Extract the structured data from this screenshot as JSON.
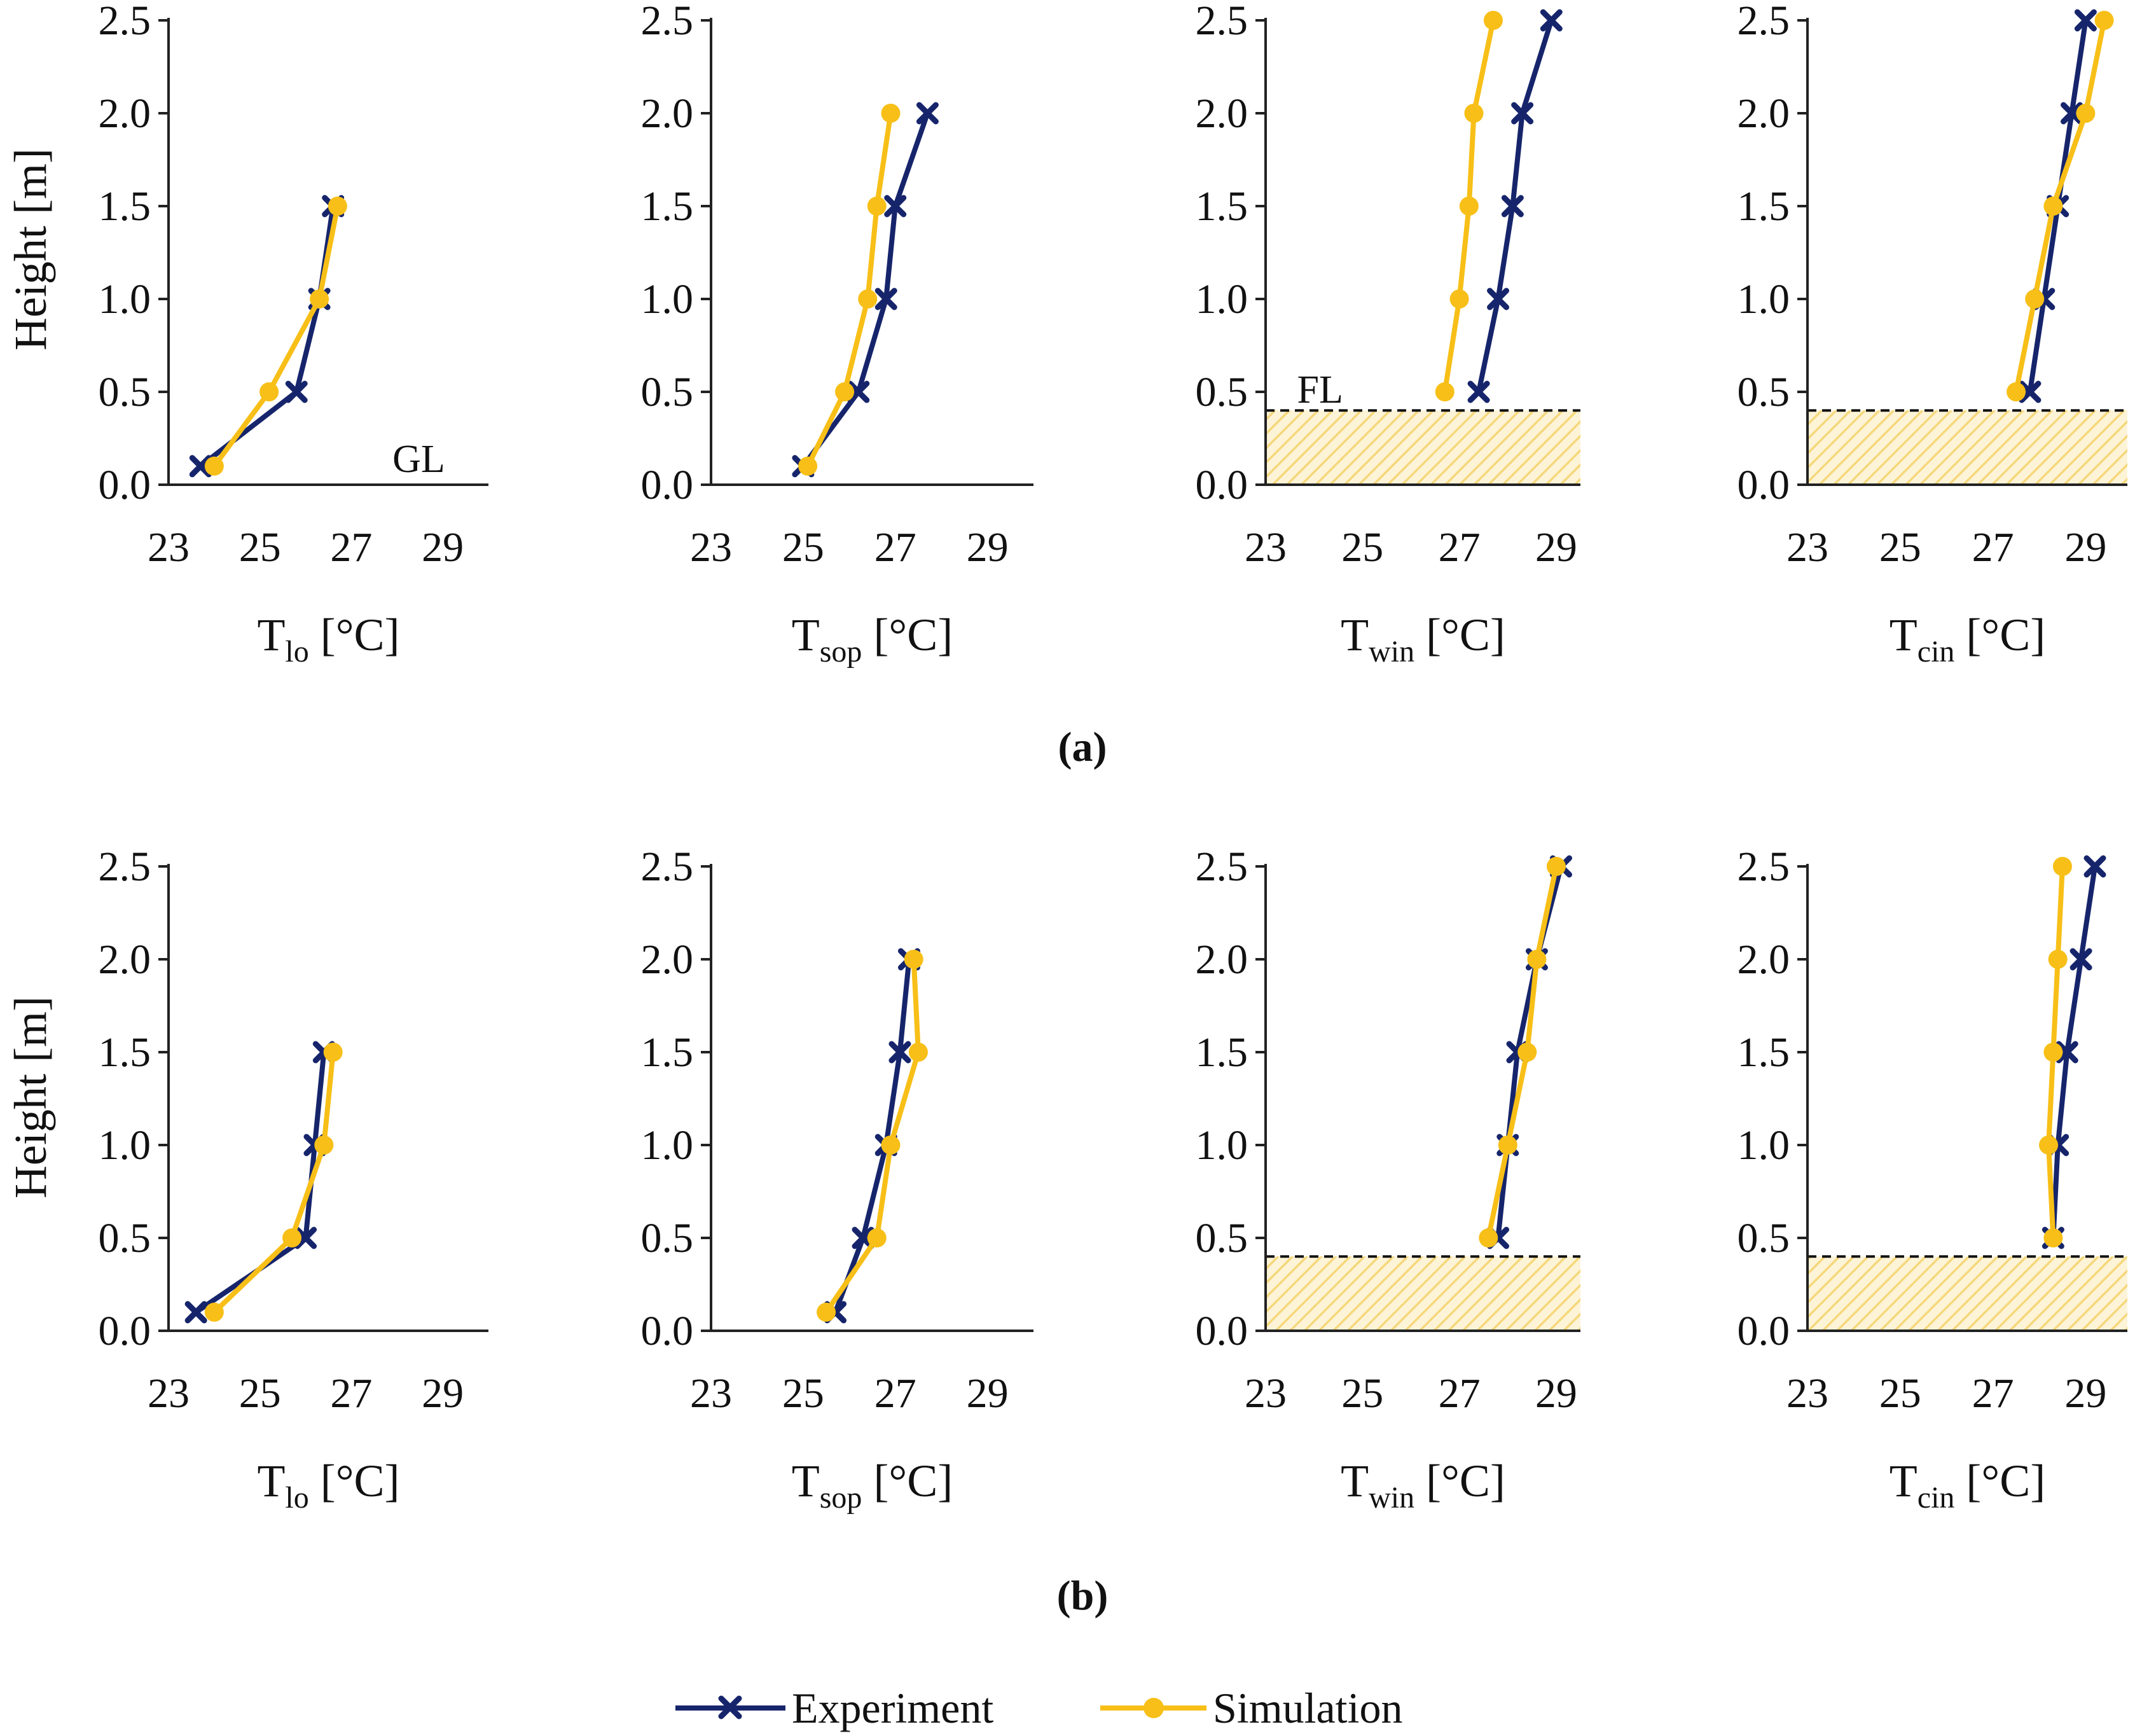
{
  "colors": {
    "experiment": "#16256b",
    "simulation": "#f7bf17",
    "hatch": "#f6d77a",
    "axis": "#222222"
  },
  "figure": {
    "row_a_label": "(a)",
    "row_b_label": "(b)",
    "ylabel": "Height [m]",
    "xlabel_unit": "[°C]",
    "legend": {
      "experiment": "Experiment",
      "simulation": "Simulation"
    }
  },
  "chart_data": [
    {
      "type": "line",
      "row": "a",
      "panel": 1,
      "xlabel_main": "T",
      "xlabel_sub": "lo",
      "xlim": [
        23,
        30
      ],
      "ylim": [
        0,
        2.5
      ],
      "xticks": [
        "23",
        "25",
        "27",
        "29"
      ],
      "yticks": [
        "0.0",
        "0.5",
        "1.0",
        "1.5",
        "2.0",
        "2.5"
      ],
      "show_ylabel": true,
      "annotation": "GL",
      "annotation_pos": "bottom-right",
      "floor_level": null,
      "series": [
        {
          "name": "Experiment",
          "points": [
            [
              23.7,
              0.1
            ],
            [
              25.8,
              0.5
            ],
            [
              26.3,
              1.0
            ],
            [
              26.6,
              1.5
            ]
          ]
        },
        {
          "name": "Simulation",
          "points": [
            [
              24.0,
              0.1
            ],
            [
              25.2,
              0.5
            ],
            [
              26.3,
              1.0
            ],
            [
              26.7,
              1.5
            ]
          ]
        }
      ]
    },
    {
      "type": "line",
      "row": "a",
      "panel": 2,
      "xlabel_main": "T",
      "xlabel_sub": "sop",
      "xlim": [
        23,
        30
      ],
      "ylim": [
        0,
        2.5
      ],
      "xticks": [
        "23",
        "25",
        "27",
        "29"
      ],
      "yticks": [
        "0.0",
        "0.5",
        "1.0",
        "1.5",
        "2.0",
        "2.5"
      ],
      "show_ylabel": false,
      "annotation": null,
      "floor_level": null,
      "series": [
        {
          "name": "Experiment",
          "points": [
            [
              25.0,
              0.1
            ],
            [
              26.2,
              0.5
            ],
            [
              26.8,
              1.0
            ],
            [
              27.0,
              1.5
            ],
            [
              27.7,
              2.0
            ]
          ]
        },
        {
          "name": "Simulation",
          "points": [
            [
              25.1,
              0.1
            ],
            [
              25.9,
              0.5
            ],
            [
              26.4,
              1.0
            ],
            [
              26.6,
              1.5
            ],
            [
              26.9,
              2.0
            ]
          ]
        }
      ]
    },
    {
      "type": "line",
      "row": "a",
      "panel": 3,
      "xlabel_main": "T",
      "xlabel_sub": "win",
      "xlim": [
        23,
        29.5
      ],
      "ylim": [
        0,
        2.5
      ],
      "xticks": [
        "23",
        "25",
        "27",
        "29"
      ],
      "yticks": [
        "0.0",
        "0.5",
        "1.0",
        "1.5",
        "2.0",
        "2.5"
      ],
      "show_ylabel": false,
      "annotation": "FL",
      "annotation_pos": "above-floor",
      "floor_level": 0.4,
      "series": [
        {
          "name": "Experiment",
          "points": [
            [
              27.4,
              0.5
            ],
            [
              27.8,
              1.0
            ],
            [
              28.1,
              1.5
            ],
            [
              28.3,
              2.0
            ],
            [
              28.9,
              2.5
            ]
          ]
        },
        {
          "name": "Simulation",
          "points": [
            [
              26.7,
              0.5
            ],
            [
              27.0,
              1.0
            ],
            [
              27.2,
              1.5
            ],
            [
              27.3,
              2.0
            ],
            [
              27.7,
              2.5
            ]
          ]
        }
      ]
    },
    {
      "type": "line",
      "row": "a",
      "panel": 4,
      "xlabel_main": "T",
      "xlabel_sub": "cin",
      "xlim": [
        23,
        29.9
      ],
      "ylim": [
        0,
        2.5
      ],
      "xticks": [
        "23",
        "25",
        "27",
        "29"
      ],
      "yticks": [
        "0.0",
        "0.5",
        "1.0",
        "1.5",
        "2.0",
        "2.5"
      ],
      "show_ylabel": false,
      "annotation": null,
      "floor_level": 0.4,
      "series": [
        {
          "name": "Experiment",
          "points": [
            [
              27.8,
              0.5
            ],
            [
              28.1,
              1.0
            ],
            [
              28.4,
              1.5
            ],
            [
              28.7,
              2.0
            ],
            [
              29.0,
              2.5
            ]
          ]
        },
        {
          "name": "Simulation",
          "points": [
            [
              27.5,
              0.5
            ],
            [
              27.9,
              1.0
            ],
            [
              28.3,
              1.5
            ],
            [
              29.0,
              2.0
            ],
            [
              29.4,
              2.5
            ]
          ]
        }
      ]
    },
    {
      "type": "line",
      "row": "b",
      "panel": 1,
      "xlabel_main": "T",
      "xlabel_sub": "lo",
      "xlim": [
        23,
        30
      ],
      "ylim": [
        0,
        2.5
      ],
      "xticks": [
        "23",
        "25",
        "27",
        "29"
      ],
      "yticks": [
        "0.0",
        "0.5",
        "1.0",
        "1.5",
        "2.0",
        "2.5"
      ],
      "show_ylabel": true,
      "annotation": null,
      "floor_level": null,
      "series": [
        {
          "name": "Experiment",
          "points": [
            [
              23.6,
              0.1
            ],
            [
              26.0,
              0.5
            ],
            [
              26.2,
              1.0
            ],
            [
              26.4,
              1.5
            ]
          ]
        },
        {
          "name": "Simulation",
          "points": [
            [
              24.0,
              0.1
            ],
            [
              25.7,
              0.5
            ],
            [
              26.4,
              1.0
            ],
            [
              26.6,
              1.5
            ]
          ]
        }
      ]
    },
    {
      "type": "line",
      "row": "b",
      "panel": 2,
      "xlabel_main": "T",
      "xlabel_sub": "sop",
      "xlim": [
        23,
        30
      ],
      "ylim": [
        0,
        2.5
      ],
      "xticks": [
        "23",
        "25",
        "27",
        "29"
      ],
      "yticks": [
        "0.0",
        "0.5",
        "1.0",
        "1.5",
        "2.0",
        "2.5"
      ],
      "show_ylabel": false,
      "annotation": null,
      "floor_level": null,
      "series": [
        {
          "name": "Experiment",
          "points": [
            [
              25.7,
              0.1
            ],
            [
              26.3,
              0.5
            ],
            [
              26.8,
              1.0
            ],
            [
              27.1,
              1.5
            ],
            [
              27.3,
              2.0
            ]
          ]
        },
        {
          "name": "Simulation",
          "points": [
            [
              25.5,
              0.1
            ],
            [
              26.6,
              0.5
            ],
            [
              26.9,
              1.0
            ],
            [
              27.5,
              1.5
            ],
            [
              27.4,
              2.0
            ]
          ]
        }
      ]
    },
    {
      "type": "line",
      "row": "b",
      "panel": 3,
      "xlabel_main": "T",
      "xlabel_sub": "win",
      "xlim": [
        23,
        29.5
      ],
      "ylim": [
        0,
        2.5
      ],
      "xticks": [
        "23",
        "25",
        "27",
        "29"
      ],
      "yticks": [
        "0.0",
        "0.5",
        "1.0",
        "1.5",
        "2.0",
        "2.5"
      ],
      "show_ylabel": false,
      "annotation": null,
      "floor_level": 0.4,
      "series": [
        {
          "name": "Experiment",
          "points": [
            [
              27.8,
              0.5
            ],
            [
              28.0,
              1.0
            ],
            [
              28.2,
              1.5
            ],
            [
              28.6,
              2.0
            ],
            [
              29.1,
              2.5
            ]
          ]
        },
        {
          "name": "Simulation",
          "points": [
            [
              27.6,
              0.5
            ],
            [
              28.0,
              1.0
            ],
            [
              28.4,
              1.5
            ],
            [
              28.6,
              2.0
            ],
            [
              29.0,
              2.5
            ]
          ]
        }
      ]
    },
    {
      "type": "line",
      "row": "b",
      "panel": 4,
      "xlabel_main": "T",
      "xlabel_sub": "cin",
      "xlim": [
        23,
        29.9
      ],
      "ylim": [
        0,
        2.5
      ],
      "xticks": [
        "23",
        "25",
        "27",
        "29"
      ],
      "yticks": [
        "0.0",
        "0.5",
        "1.0",
        "1.5",
        "2.0",
        "2.5"
      ],
      "show_ylabel": false,
      "annotation": null,
      "floor_level": 0.4,
      "series": [
        {
          "name": "Experiment",
          "points": [
            [
              28.3,
              0.5
            ],
            [
              28.4,
              1.0
            ],
            [
              28.6,
              1.5
            ],
            [
              28.9,
              2.0
            ],
            [
              29.2,
              2.5
            ]
          ]
        },
        {
          "name": "Simulation",
          "points": [
            [
              28.3,
              0.5
            ],
            [
              28.2,
              1.0
            ],
            [
              28.3,
              1.5
            ],
            [
              28.4,
              2.0
            ],
            [
              28.5,
              2.5
            ]
          ]
        }
      ]
    }
  ]
}
